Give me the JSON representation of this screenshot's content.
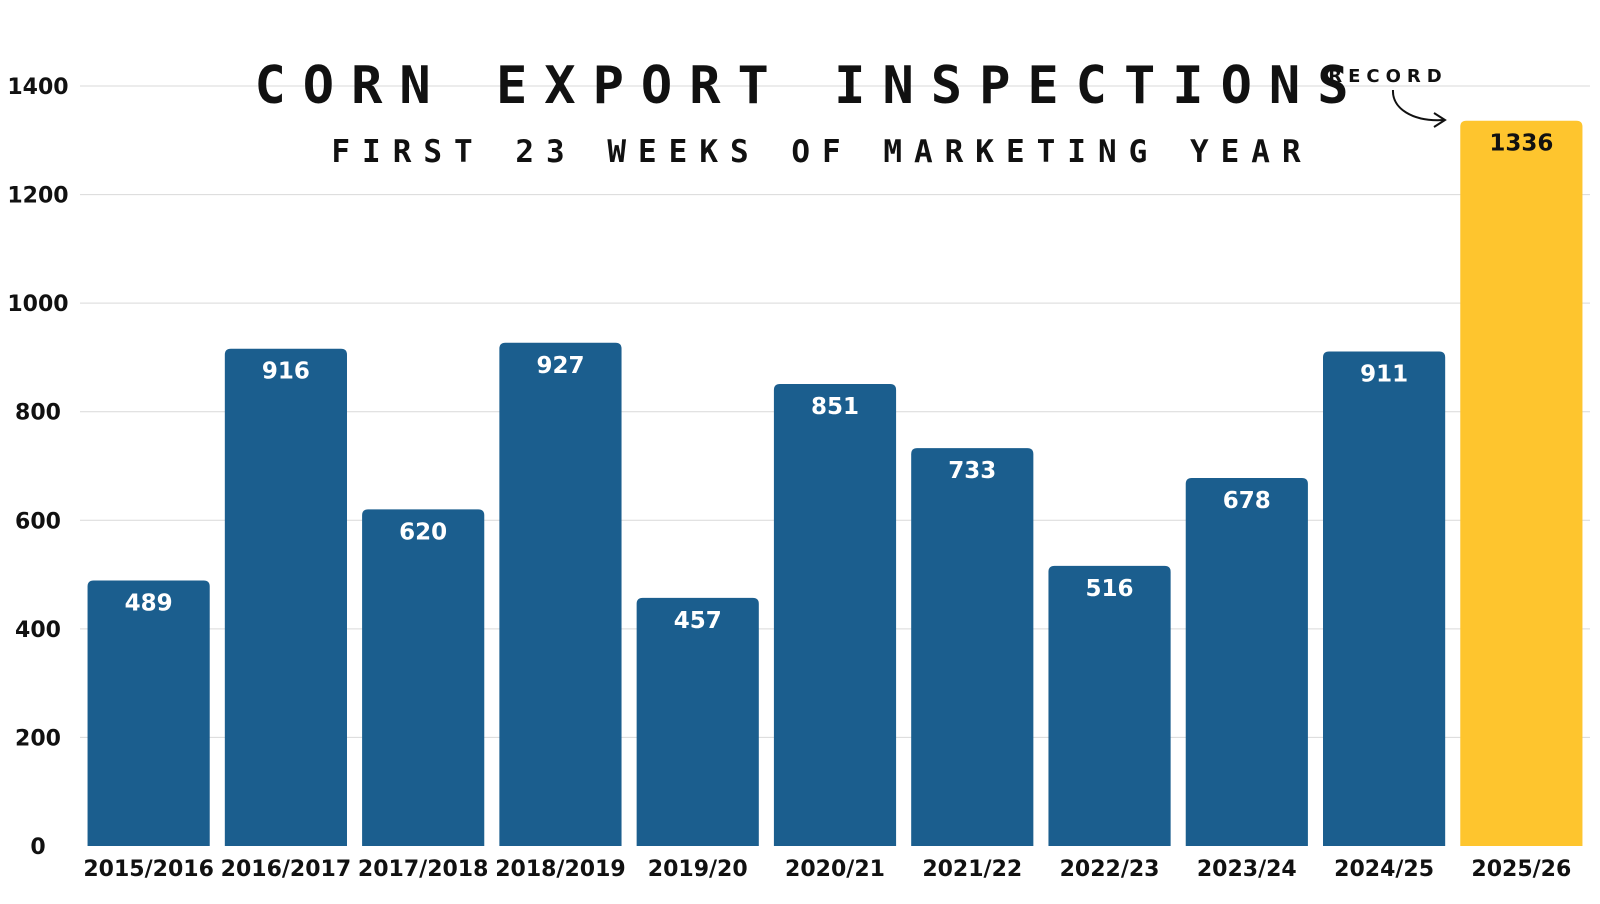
{
  "chart_data": {
    "type": "bar",
    "title": "CORN EXPORT INSPECTIONS",
    "subtitle": "FIRST 23 WEEKS OF MARKETING YEAR",
    "xlabel": "",
    "ylabel": "",
    "categories": [
      "2015/2016",
      "2016/2017",
      "2017/2018",
      "2018/2019",
      "2019/20",
      "2020/21",
      "2021/22",
      "2022/23",
      "2023/24",
      "2024/25",
      "2025/26"
    ],
    "values": [
      489,
      916,
      620,
      927,
      457,
      851,
      733,
      516,
      678,
      911,
      1336
    ],
    "y_ticks": [
      0,
      200,
      400,
      600,
      800,
      1000,
      1200,
      1400
    ],
    "ylim": [
      0,
      1400
    ],
    "grid": true,
    "annotation": {
      "text": "RECORD",
      "category": "2025/26"
    },
    "colors": {
      "bar": "#1b5e8e",
      "highlight": "#fec52e",
      "grid": "#d9d9d9",
      "label_on_bar": "#ffffff",
      "label_on_highlight": "#111111",
      "axis_text": "#111111"
    },
    "highlight_index": 10
  }
}
